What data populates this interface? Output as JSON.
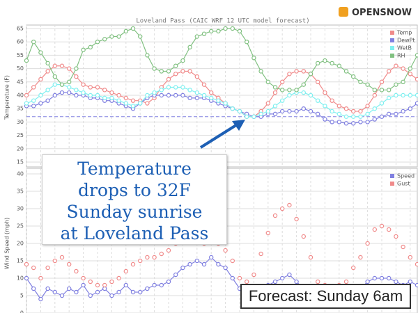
{
  "chart_data": [
    {
      "type": "line",
      "title": "Loveland Pass (CAIC WRF 12 UTC model forecast)",
      "y_label": "Temperature (F)",
      "ylim": [
        15,
        65
      ],
      "yticks": [
        15,
        20,
        25,
        30,
        35,
        40,
        45,
        50,
        55,
        60,
        65
      ],
      "grid": true,
      "legend": "top-right",
      "ref_line": 32,
      "categories": [
        null,
        null,
        null,
        null,
        null,
        null,
        null,
        null,
        null,
        null,
        null,
        null,
        null,
        null,
        null,
        null,
        null,
        null,
        null,
        null,
        null,
        null,
        null,
        null,
        null,
        null,
        null,
        null,
        null,
        null,
        null,
        null,
        null,
        null,
        null,
        null,
        null,
        null,
        null,
        null,
        null,
        null,
        null,
        null,
        null,
        null,
        null,
        null,
        null,
        null,
        null,
        null,
        null,
        null,
        null,
        null
      ],
      "series": [
        {
          "name": "Temp",
          "color": "#f08a8a",
          "line": true,
          "values": [
            40,
            43,
            46,
            49,
            51,
            51,
            50,
            47,
            44,
            43,
            43,
            42,
            41,
            40,
            39,
            38,
            38,
            37,
            39,
            43,
            46,
            48,
            49,
            49,
            47,
            44,
            41,
            39,
            37,
            35,
            34,
            32,
            32,
            34,
            37,
            41,
            45,
            48,
            49,
            49,
            48,
            45,
            41,
            38,
            36,
            35,
            34,
            34,
            36,
            40,
            45,
            49,
            51,
            50,
            48,
            46
          ]
        },
        {
          "name": "DewPt",
          "color": "#8080e0",
          "line": true,
          "values": [
            36,
            36,
            37,
            38,
            40,
            41,
            41,
            40,
            40,
            39,
            39,
            38,
            38,
            37,
            36,
            35,
            37,
            39,
            40,
            40,
            40,
            40,
            40,
            39,
            39,
            39,
            38,
            37,
            36,
            35,
            34,
            33,
            32,
            32,
            33,
            33,
            34,
            34,
            34,
            35,
            34,
            33,
            31,
            30,
            30,
            29.5,
            29.5,
            30,
            30,
            31,
            32,
            33,
            33,
            34,
            35,
            37
          ]
        },
        {
          "name": "WetB",
          "color": "#80f0f0",
          "line": true,
          "values": [
            37,
            38,
            40,
            42,
            44,
            44,
            43,
            42,
            41,
            40,
            40,
            39,
            39,
            38,
            37,
            36,
            37,
            40,
            41,
            42,
            43,
            43,
            43,
            42,
            41,
            40,
            39,
            38,
            37,
            35,
            34,
            32,
            32,
            33,
            34,
            36,
            38,
            40,
            41,
            41,
            40,
            38,
            36,
            34,
            33,
            32,
            32,
            32,
            33,
            35,
            37,
            39,
            40,
            40,
            40,
            40
          ]
        },
        {
          "name": "RH",
          "color": "#80c080",
          "line": true,
          "values": [
            53,
            60,
            56,
            52,
            47,
            44,
            45,
            50,
            57,
            58,
            60,
            61,
            62,
            62,
            64,
            65,
            62,
            55,
            50,
            49,
            49,
            51,
            53,
            58,
            62,
            63,
            64,
            64,
            65,
            65,
            64,
            60,
            54,
            49,
            45,
            43,
            42,
            42,
            42,
            44,
            48,
            52,
            53,
            52,
            51,
            49,
            47,
            45,
            44,
            42,
            42,
            42,
            44,
            45,
            50,
            55
          ]
        }
      ]
    },
    {
      "type": "line",
      "y_label": "Wind Speed (mph)",
      "ylim": [
        0,
        40
      ],
      "yticks": [
        0,
        5,
        10,
        15,
        20,
        25,
        30,
        35,
        40
      ],
      "grid": true,
      "legend": "top-right",
      "categories": [
        null,
        null,
        null,
        null,
        null,
        null,
        null,
        null,
        null,
        null,
        null,
        null,
        null,
        null,
        null,
        null,
        null,
        null,
        null,
        null,
        null,
        null,
        null,
        null,
        null,
        null,
        null,
        null,
        null,
        null,
        null,
        null,
        null,
        null,
        null,
        null,
        null,
        null,
        null,
        null,
        null,
        null,
        null,
        null,
        null,
        null,
        null,
        null,
        null,
        null,
        null,
        null,
        null,
        null,
        null,
        null
      ],
      "series": [
        {
          "name": "Speed",
          "color": "#8080e0",
          "line": true,
          "values": [
            10,
            7,
            4,
            7,
            6,
            5,
            7,
            6,
            8,
            5,
            6,
            7,
            5,
            6,
            8,
            6,
            6,
            7,
            8,
            8,
            9,
            11,
            13,
            14,
            15,
            14,
            16,
            14,
            13,
            10,
            7,
            6,
            6,
            7,
            8,
            9,
            10,
            11,
            9,
            7,
            5,
            4,
            3,
            3,
            4,
            5,
            6,
            7,
            9,
            10,
            10,
            10,
            9,
            8,
            9,
            8
          ]
        },
        {
          "name": "Gust",
          "color": "#f08a8a",
          "line": false,
          "values": [
            14,
            13,
            10,
            13,
            15,
            16,
            14,
            12,
            10,
            9,
            8,
            8,
            9,
            10,
            12,
            14,
            15,
            16,
            16,
            17,
            18,
            20,
            22,
            23,
            22,
            20,
            21,
            20,
            18,
            15,
            10,
            9,
            11,
            17,
            23,
            28,
            30,
            31,
            27,
            22,
            16,
            9,
            8,
            7,
            8,
            9,
            13,
            16,
            20,
            24,
            25,
            24,
            22,
            19,
            16,
            14
          ]
        }
      ]
    }
  ],
  "annotations": {
    "callout": [
      "Temperature",
      "drops to 32F",
      "Sunday sunrise",
      "at Loveland Pass"
    ],
    "caption": "Forecast: Sunday 6am",
    "logo": "OPENSNOW"
  }
}
